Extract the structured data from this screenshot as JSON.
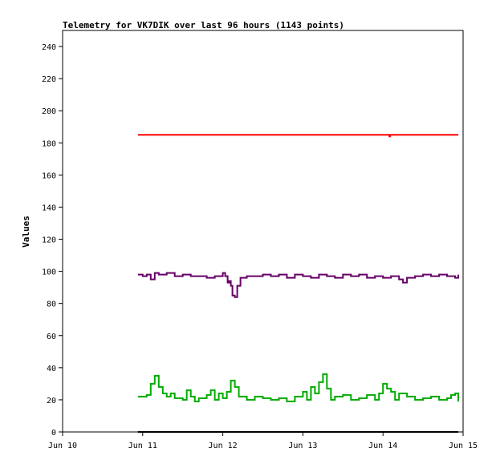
{
  "chart_data": {
    "type": "line",
    "title": "Telemetry for VK7DIK over last 96 hours (1143 points)",
    "ylabel": "Values",
    "xlabel": "",
    "ylim": [
      0,
      250
    ],
    "yticks": [
      0,
      20,
      40,
      60,
      80,
      100,
      120,
      140,
      160,
      180,
      200,
      220,
      240
    ],
    "xlim": [
      0,
      5
    ],
    "xticks": [
      {
        "value": 0,
        "label": "Jun 10"
      },
      {
        "value": 1,
        "label": "Jun 11"
      },
      {
        "value": 2,
        "label": "Jun 12"
      },
      {
        "value": 3,
        "label": "Jun 13"
      },
      {
        "value": 4,
        "label": "Jun 14"
      },
      {
        "value": 5,
        "label": "Jun 15"
      }
    ],
    "grid": false,
    "legend": "none",
    "series": [
      {
        "color": "#ff0000",
        "x": [
          0.94,
          1.5,
          2.0,
          2.5,
          3.0,
          3.5,
          4.0,
          4.07,
          4.08,
          4.09,
          4.5,
          4.94
        ],
        "y": [
          185,
          185,
          185,
          185,
          185,
          185,
          185,
          185,
          184,
          185,
          185,
          185
        ]
      },
      {
        "color": "#660066",
        "x": [
          0.94,
          1.0,
          1.05,
          1.1,
          1.15,
          1.2,
          1.3,
          1.4,
          1.5,
          1.6,
          1.7,
          1.8,
          1.9,
          2.0,
          2.03,
          2.06,
          2.08,
          2.1,
          2.12,
          2.15,
          2.18,
          2.22,
          2.3,
          2.4,
          2.5,
          2.6,
          2.7,
          2.8,
          2.9,
          3.0,
          3.1,
          3.2,
          3.3,
          3.4,
          3.5,
          3.6,
          3.7,
          3.8,
          3.9,
          4.0,
          4.1,
          4.2,
          4.25,
          4.3,
          4.4,
          4.5,
          4.6,
          4.7,
          4.8,
          4.9,
          4.94
        ],
        "y": [
          98,
          97,
          98,
          95,
          99,
          98,
          99,
          97,
          98,
          97,
          97,
          96,
          97,
          99,
          97,
          93,
          94,
          91,
          85,
          84,
          91,
          96,
          97,
          97,
          98,
          97,
          98,
          96,
          98,
          97,
          96,
          98,
          97,
          96,
          98,
          97,
          98,
          96,
          97,
          96,
          97,
          95,
          93,
          96,
          97,
          98,
          97,
          98,
          97,
          96,
          98
        ]
      },
      {
        "color": "#00aa00",
        "x": [
          0.94,
          1.0,
          1.05,
          1.1,
          1.15,
          1.2,
          1.25,
          1.3,
          1.35,
          1.4,
          1.5,
          1.55,
          1.6,
          1.65,
          1.7,
          1.8,
          1.85,
          1.9,
          1.95,
          2.0,
          2.05,
          2.1,
          2.15,
          2.2,
          2.3,
          2.4,
          2.5,
          2.6,
          2.7,
          2.8,
          2.9,
          3.0,
          3.05,
          3.1,
          3.15,
          3.2,
          3.25,
          3.3,
          3.35,
          3.4,
          3.5,
          3.6,
          3.7,
          3.8,
          3.9,
          3.95,
          4.0,
          4.05,
          4.1,
          4.15,
          4.2,
          4.3,
          4.4,
          4.5,
          4.6,
          4.7,
          4.8,
          4.85,
          4.9,
          4.94
        ],
        "y": [
          22,
          22,
          23,
          30,
          35,
          28,
          24,
          22,
          24,
          21,
          20,
          26,
          22,
          19,
          21,
          23,
          26,
          20,
          24,
          21,
          25,
          32,
          28,
          22,
          20,
          22,
          21,
          20,
          21,
          19,
          22,
          25,
          20,
          28,
          24,
          31,
          36,
          27,
          20,
          22,
          23,
          20,
          21,
          23,
          20,
          24,
          30,
          27,
          25,
          20,
          24,
          22,
          20,
          21,
          22,
          20,
          21,
          23,
          24,
          19
        ]
      },
      {
        "color": "#000000",
        "x": [
          0.94,
          4.94
        ],
        "y": [
          0,
          0
        ]
      }
    ]
  }
}
